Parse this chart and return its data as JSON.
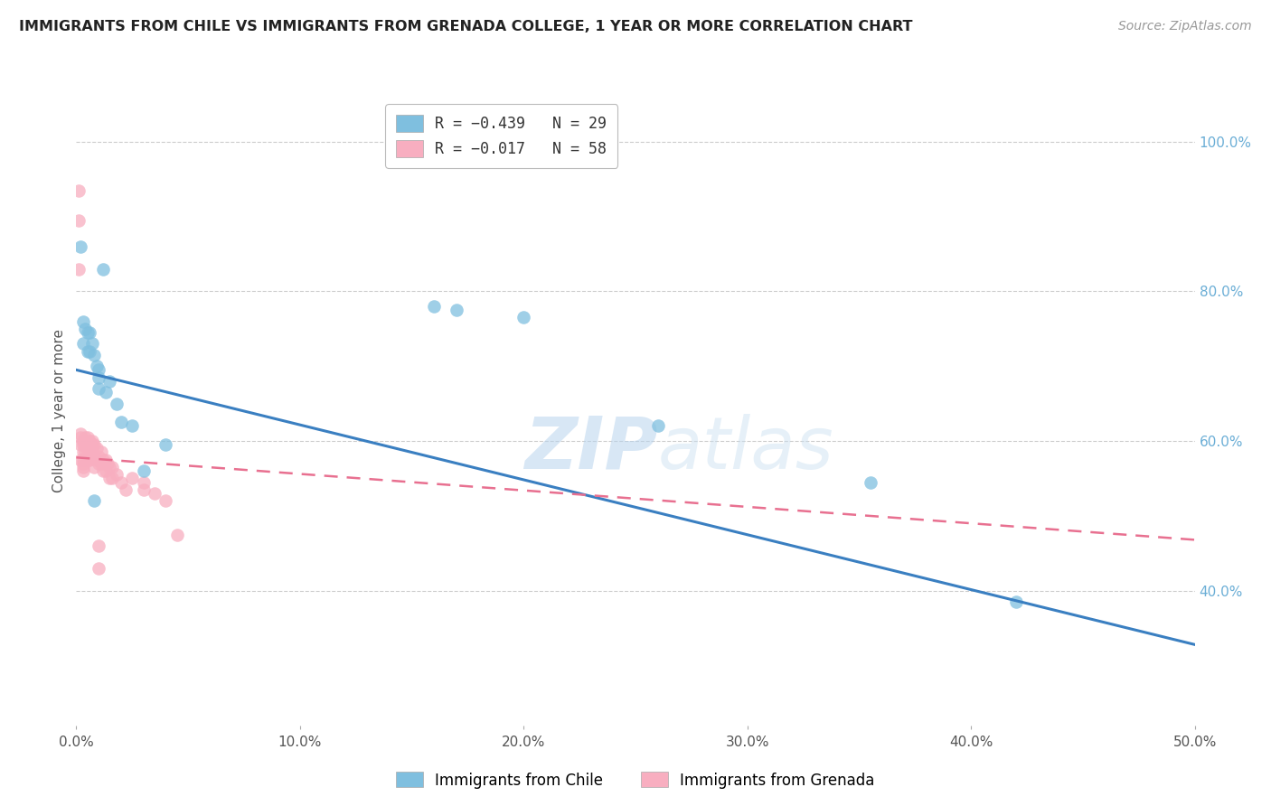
{
  "title": "IMMIGRANTS FROM CHILE VS IMMIGRANTS FROM GRENADA COLLEGE, 1 YEAR OR MORE CORRELATION CHART",
  "source": "Source: ZipAtlas.com",
  "ylabel": "College, 1 year or more",
  "right_yticks": [
    "100.0%",
    "80.0%",
    "60.0%",
    "40.0%"
  ],
  "right_ytick_vals": [
    1.0,
    0.8,
    0.6,
    0.4
  ],
  "watermark_zip": "ZIP",
  "watermark_atlas": "atlas",
  "legend_line1": "R = −0.439   N = 29",
  "legend_line2": "R = −0.017   N = 58",
  "chile_color": "#7fbfdf",
  "grenada_color": "#f8aec0",
  "chile_line_color": "#3a7fc1",
  "grenada_line_color": "#e87090",
  "xmin": 0.0,
  "xmax": 0.5,
  "ymin": 0.22,
  "ymax": 1.06,
  "chile_line_x0": 0.0,
  "chile_line_y0": 0.695,
  "chile_line_x1": 0.5,
  "chile_line_y1": 0.328,
  "grenada_line_x0": 0.0,
  "grenada_line_y0": 0.578,
  "grenada_line_x1": 0.5,
  "grenada_line_y1": 0.468,
  "chile_points_x": [
    0.002,
    0.012,
    0.003,
    0.003,
    0.004,
    0.005,
    0.005,
    0.006,
    0.006,
    0.007,
    0.008,
    0.009,
    0.01,
    0.01,
    0.01,
    0.013,
    0.015,
    0.018,
    0.02,
    0.025,
    0.04,
    0.16,
    0.17,
    0.2,
    0.26,
    0.355,
    0.42,
    0.008,
    0.03
  ],
  "chile_points_y": [
    0.86,
    0.83,
    0.76,
    0.73,
    0.75,
    0.745,
    0.72,
    0.745,
    0.72,
    0.73,
    0.715,
    0.7,
    0.695,
    0.685,
    0.67,
    0.665,
    0.68,
    0.65,
    0.625,
    0.62,
    0.595,
    0.78,
    0.775,
    0.765,
    0.62,
    0.545,
    0.385,
    0.52,
    0.56
  ],
  "grenada_points_x": [
    0.001,
    0.001,
    0.001,
    0.002,
    0.002,
    0.002,
    0.002,
    0.003,
    0.003,
    0.003,
    0.003,
    0.003,
    0.003,
    0.003,
    0.004,
    0.004,
    0.004,
    0.004,
    0.005,
    0.005,
    0.005,
    0.005,
    0.006,
    0.006,
    0.006,
    0.006,
    0.007,
    0.007,
    0.007,
    0.008,
    0.008,
    0.008,
    0.009,
    0.009,
    0.01,
    0.01,
    0.011,
    0.011,
    0.012,
    0.012,
    0.013,
    0.013,
    0.014,
    0.015,
    0.015,
    0.016,
    0.016,
    0.018,
    0.02,
    0.022,
    0.025,
    0.03,
    0.03,
    0.035,
    0.04,
    0.045,
    0.01,
    0.01
  ],
  "grenada_points_y": [
    0.935,
    0.895,
    0.83,
    0.61,
    0.605,
    0.595,
    0.575,
    0.6,
    0.595,
    0.585,
    0.575,
    0.57,
    0.565,
    0.56,
    0.605,
    0.6,
    0.595,
    0.585,
    0.605,
    0.595,
    0.585,
    0.575,
    0.6,
    0.595,
    0.585,
    0.575,
    0.6,
    0.595,
    0.58,
    0.595,
    0.58,
    0.565,
    0.59,
    0.575,
    0.58,
    0.57,
    0.585,
    0.57,
    0.575,
    0.56,
    0.575,
    0.56,
    0.57,
    0.565,
    0.55,
    0.565,
    0.55,
    0.555,
    0.545,
    0.535,
    0.55,
    0.545,
    0.535,
    0.53,
    0.52,
    0.475,
    0.46,
    0.43
  ],
  "background_color": "#ffffff"
}
